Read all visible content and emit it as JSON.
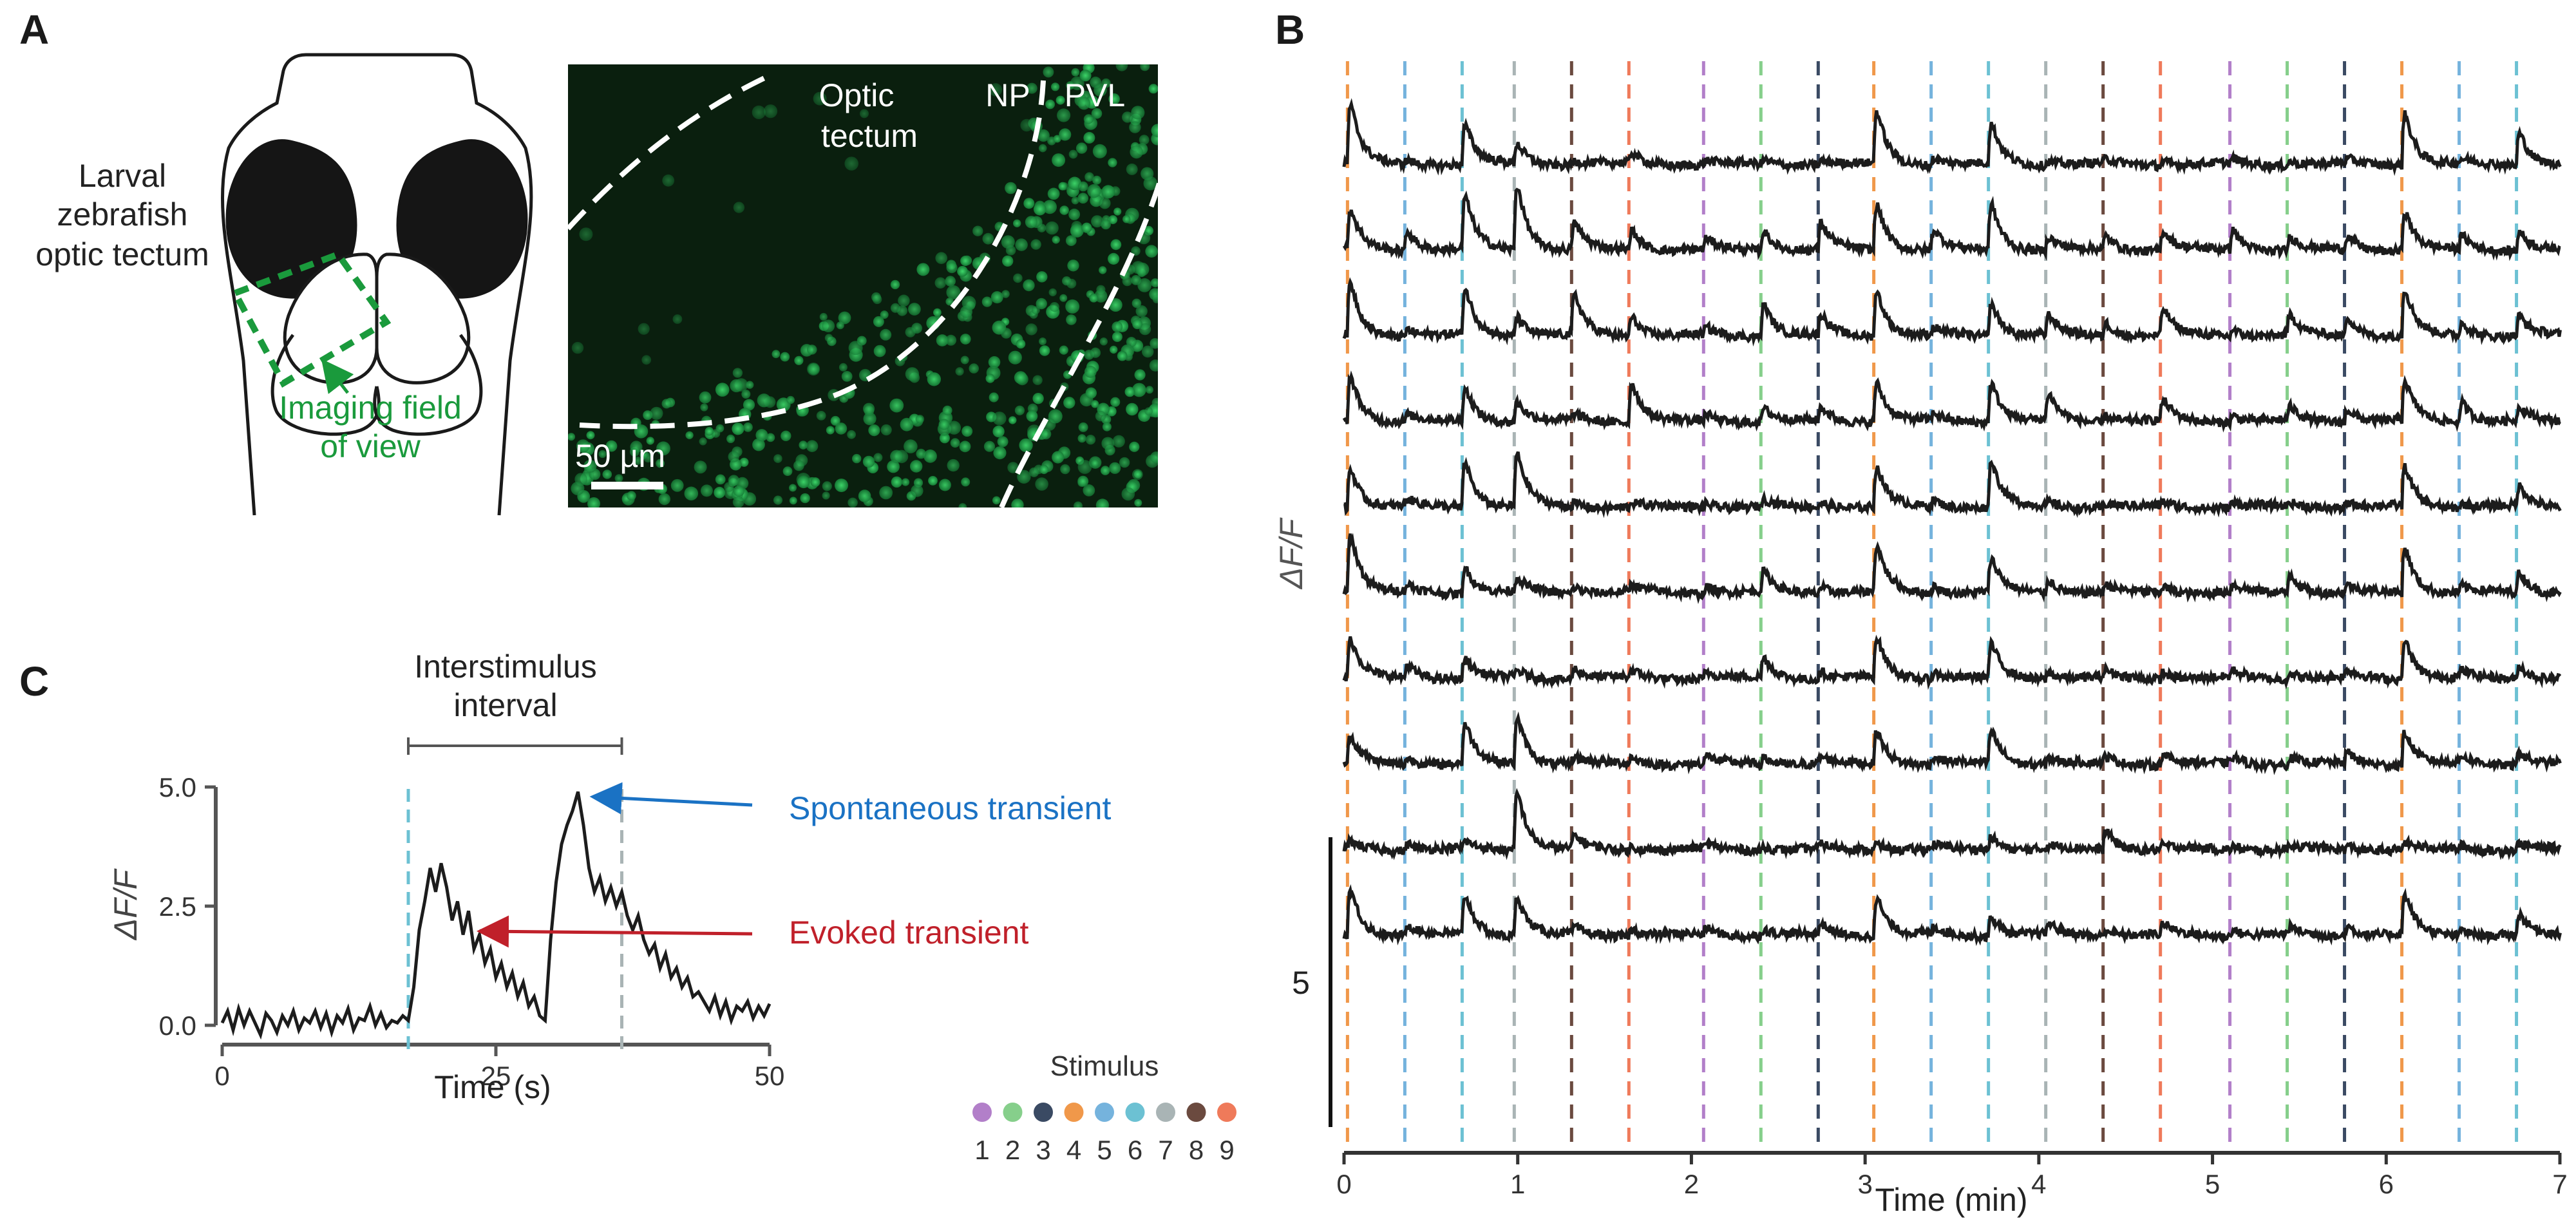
{
  "panels": {
    "a": {
      "letter": "A"
    },
    "b": {
      "letter": "B"
    },
    "c": {
      "letter": "C"
    }
  },
  "schematic": {
    "title_lines": [
      "Larval",
      "zebrafish",
      "optic tectum"
    ],
    "fov_lines": [
      "Imaging field",
      "of view"
    ],
    "fov_color": "#1a9a3c"
  },
  "micrograph": {
    "label_tectum_lines": [
      "Optic",
      "tectum"
    ],
    "label_np": "NP",
    "label_pvl": "PVL",
    "scalebar_label": "50 µm"
  },
  "colors": {
    "stim": [
      "#b27fc9",
      "#86cf8b",
      "#3a4a63",
      "#f0984a",
      "#75b3dd",
      "#6cc1d3",
      "#a9b4b5",
      "#6b4a3f",
      "#ef7a5a"
    ],
    "trace": "#1c1c1c",
    "spontaneous": "#1a72c4",
    "evoked": "#c0202a"
  },
  "legend": {
    "title": "Stimulus",
    "labels": [
      "1",
      "2",
      "3",
      "4",
      "5",
      "6",
      "7",
      "8",
      "9"
    ]
  },
  "chart_data": [
    {
      "panel": "B",
      "type": "line",
      "xlabel": "Time (min)",
      "ylabel": "ΔF/F",
      "xlim": [
        0,
        7
      ],
      "xticks": [
        "0",
        "1",
        "2",
        "3",
        "4",
        "5",
        "6",
        "7"
      ],
      "n_traces": 10,
      "scale_bar": {
        "label": "5",
        "value": 5
      },
      "stimulus_onsets_min": [
        0.02,
        0.35,
        0.68,
        0.98,
        1.31,
        1.64,
        2.07,
        2.4,
        2.73,
        3.05,
        3.38,
        3.71,
        4.04,
        4.37,
        4.7,
        5.1,
        5.43,
        5.76,
        6.09,
        6.42,
        6.75
      ],
      "stimulus_ids": [
        4,
        5,
        6,
        7,
        8,
        9,
        1,
        2,
        3,
        4,
        5,
        6,
        7,
        8,
        9,
        1,
        2,
        3,
        4,
        5,
        6
      ],
      "response_amplitudes": [
        [
          4.5,
          0.3,
          3.0,
          1.5,
          0.3,
          0.8,
          0.3,
          0.3,
          0.3,
          4.0,
          0.5,
          3.0,
          0.3,
          0.3,
          0.3,
          0.3,
          0.3,
          0.3,
          4.0,
          0.3,
          2.5
        ],
        [
          3.0,
          1.5,
          4.0,
          5.0,
          2.0,
          1.5,
          0.8,
          1.5,
          2.0,
          3.5,
          1.5,
          3.5,
          1.0,
          1.0,
          1.5,
          1.5,
          1.0,
          1.0,
          3.0,
          1.0,
          1.5
        ],
        [
          4.0,
          0.5,
          3.5,
          1.5,
          3.0,
          1.5,
          0.5,
          2.5,
          1.5,
          3.5,
          0.5,
          2.5,
          1.5,
          1.0,
          2.0,
          0.5,
          1.5,
          1.5,
          3.5,
          1.0,
          1.5
        ],
        [
          3.5,
          0.5,
          2.5,
          1.5,
          0.5,
          3.0,
          0.5,
          1.0,
          1.0,
          3.0,
          0.5,
          3.0,
          2.0,
          0.5,
          1.5,
          0.5,
          1.0,
          1.0,
          3.0,
          1.5,
          1.0
        ],
        [
          3.0,
          0.5,
          3.5,
          4.0,
          0.3,
          0.3,
          0.3,
          0.5,
          0.3,
          3.0,
          0.5,
          3.5,
          0.3,
          0.3,
          0.3,
          0.3,
          0.3,
          0.3,
          3.0,
          0.3,
          1.5
        ],
        [
          4.5,
          0.5,
          2.0,
          1.0,
          0.5,
          0.5,
          0.5,
          1.5,
          0.5,
          3.5,
          0.5,
          2.5,
          1.0,
          0.5,
          0.5,
          0.5,
          1.5,
          0.5,
          3.5,
          0.5,
          1.5
        ],
        [
          3.0,
          1.0,
          1.5,
          0.5,
          0.8,
          0.5,
          0.5,
          1.5,
          0.5,
          3.0,
          0.5,
          2.5,
          0.5,
          0.5,
          0.5,
          0.5,
          0.5,
          0.5,
          3.0,
          0.5,
          1.0
        ],
        [
          2.0,
          0.5,
          3.0,
          3.5,
          0.5,
          0.5,
          0.5,
          0.5,
          0.5,
          2.5,
          0.5,
          2.5,
          0.5,
          0.5,
          0.8,
          0.5,
          0.5,
          0.8,
          2.5,
          0.5,
          1.0
        ],
        [
          0.5,
          0.5,
          0.5,
          4.5,
          1.0,
          0.3,
          0.3,
          0.3,
          0.3,
          0.5,
          0.3,
          1.0,
          0.3,
          1.5,
          0.3,
          0.3,
          0.3,
          0.3,
          0.5,
          0.3,
          0.5
        ],
        [
          3.5,
          0.8,
          3.0,
          3.0,
          0.5,
          0.5,
          0.5,
          0.5,
          0.8,
          3.0,
          0.5,
          1.5,
          0.8,
          0.5,
          0.8,
          0.5,
          0.5,
          0.8,
          3.0,
          0.5,
          1.5
        ]
      ]
    },
    {
      "panel": "C",
      "type": "line",
      "xlabel": "Time (s)",
      "ylabel": "ΔF/F",
      "xlim": [
        0,
        50
      ],
      "ylim": [
        0,
        5
      ],
      "xticks": [
        "0",
        "25",
        "50"
      ],
      "yticks": [
        "0.0",
        "2.5",
        "5.0"
      ],
      "stimulus_onsets_s": [
        17,
        36.5
      ],
      "stimulus_ids": [
        6,
        7
      ],
      "interval_label_lines": [
        "Interstimulus",
        "interval"
      ],
      "annotations": {
        "spontaneous": {
          "text": "Spontaneous transient",
          "x": 32.5,
          "y": 4.9
        },
        "evoked": {
          "text": "Evoked transient",
          "x": 23,
          "y": 2.0
        }
      },
      "x": [
        0,
        0.5,
        1,
        1.5,
        2,
        2.5,
        3,
        3.5,
        4,
        4.5,
        5,
        5.5,
        6,
        6.5,
        7,
        7.5,
        8,
        8.5,
        9,
        9.5,
        10,
        10.5,
        11,
        11.5,
        12,
        12.5,
        13,
        13.5,
        14,
        14.5,
        15,
        15.5,
        16,
        16.5,
        17,
        17.5,
        18,
        18.5,
        19,
        19.5,
        20,
        20.5,
        21,
        21.5,
        22,
        22.5,
        23,
        23.5,
        24,
        24.5,
        25,
        25.5,
        26,
        26.5,
        27,
        27.5,
        28,
        28.5,
        29,
        29.5,
        30,
        30.5,
        31,
        31.5,
        32,
        32.5,
        33,
        33.5,
        34,
        34.5,
        35,
        35.5,
        36,
        36.5,
        37,
        37.5,
        38,
        38.5,
        39,
        39.5,
        40,
        40.5,
        41,
        41.5,
        42,
        42.5,
        43,
        43.5,
        44,
        44.5,
        45,
        45.5,
        46,
        46.5,
        47,
        47.5,
        48,
        48.5,
        49,
        49.5,
        50
      ],
      "y": [
        0.05,
        0.3,
        -0.1,
        0.35,
        0.0,
        0.3,
        0.05,
        -0.2,
        0.25,
        0.1,
        -0.15,
        0.2,
        0.0,
        0.3,
        -0.1,
        0.15,
        0.05,
        0.3,
        -0.05,
        0.25,
        -0.15,
        0.2,
        0.05,
        0.35,
        -0.1,
        0.15,
        0.1,
        0.4,
        0.0,
        0.25,
        -0.05,
        0.1,
        0.05,
        0.2,
        0.1,
        0.8,
        2.0,
        2.6,
        3.3,
        2.8,
        3.4,
        2.9,
        2.2,
        2.6,
        1.9,
        2.4,
        1.6,
        1.9,
        1.3,
        1.6,
        1.0,
        1.3,
        0.8,
        1.1,
        0.6,
        0.9,
        0.4,
        0.6,
        0.2,
        0.1,
        1.8,
        3.0,
        3.8,
        4.2,
        4.5,
        4.9,
        4.2,
        3.3,
        2.8,
        3.1,
        2.6,
        2.9,
        2.5,
        2.8,
        2.3,
        2.0,
        2.3,
        1.8,
        1.5,
        1.7,
        1.2,
        1.5,
        1.0,
        1.2,
        0.8,
        1.0,
        0.6,
        0.7,
        0.5,
        0.3,
        0.6,
        0.2,
        0.5,
        0.1,
        0.4,
        0.3,
        0.5,
        0.15,
        0.4,
        0.2,
        0.45
      ]
    }
  ]
}
